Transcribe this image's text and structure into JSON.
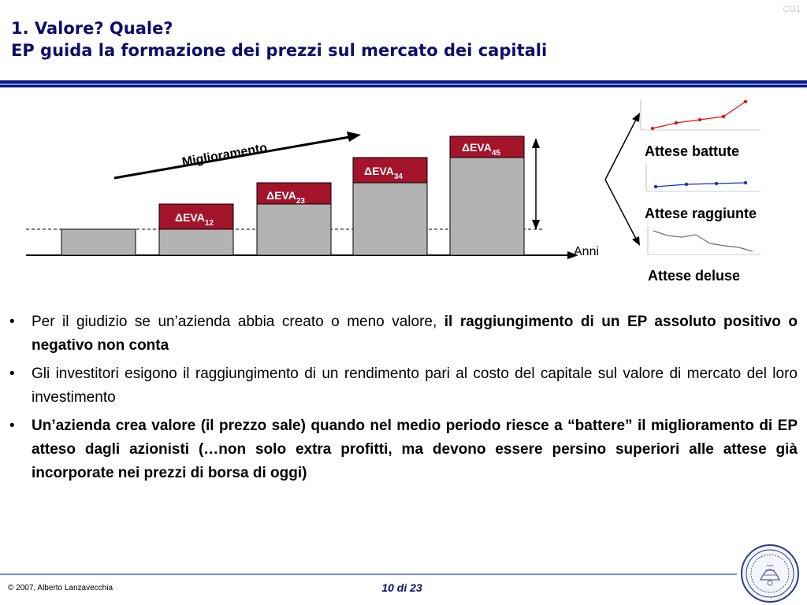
{
  "corner_tag": "CG1",
  "title": {
    "line1": "1. Valore? Quale?",
    "line2": "EP guida la formazione dei prezzi sul mercato dei capitali"
  },
  "diagram": {
    "miglioramento": "Miglioramento",
    "delta_labels": [
      {
        "base": "ΔEVA",
        "sub": "12"
      },
      {
        "base": "ΔEVA",
        "sub": "23"
      },
      {
        "base": "ΔEVA",
        "sub": "34"
      },
      {
        "base": "ΔEVA",
        "sub": "45"
      }
    ],
    "anni": "Anni",
    "outcomes": [
      "Attese battute",
      "Attese raggiunte",
      "Attese deluse"
    ],
    "colors": {
      "bar": "#b3b3b3",
      "delta": "#a3142a",
      "up": "#e81010",
      "flat": "#1030c8",
      "down": "#707070"
    }
  },
  "bullets": [
    {
      "normal": "Per il giudizio se un’azienda abbia creato o meno valore, ",
      "bold": "il raggiungimento di un EP assoluto positivo o negativo non conta"
    },
    {
      "normal": "Gli investitori esigono il raggiungimento di un rendimento pari al costo del capitale sul valore di mercato del loro investimento",
      "bold": ""
    },
    {
      "normal": "",
      "bold": "Un’azienda crea valore (il prezzo sale) quando nel medio periodo riesce a “battere” il miglioramento di EP atteso dagli azionisti (…non solo extra profitti, ma devono essere persino superiori alle attese già incorporate nei prezzi di borsa di oggi)"
    }
  ],
  "footer": {
    "copyright": "© 2007, Alberto Lanzavecchia",
    "page": "10 di 23"
  }
}
